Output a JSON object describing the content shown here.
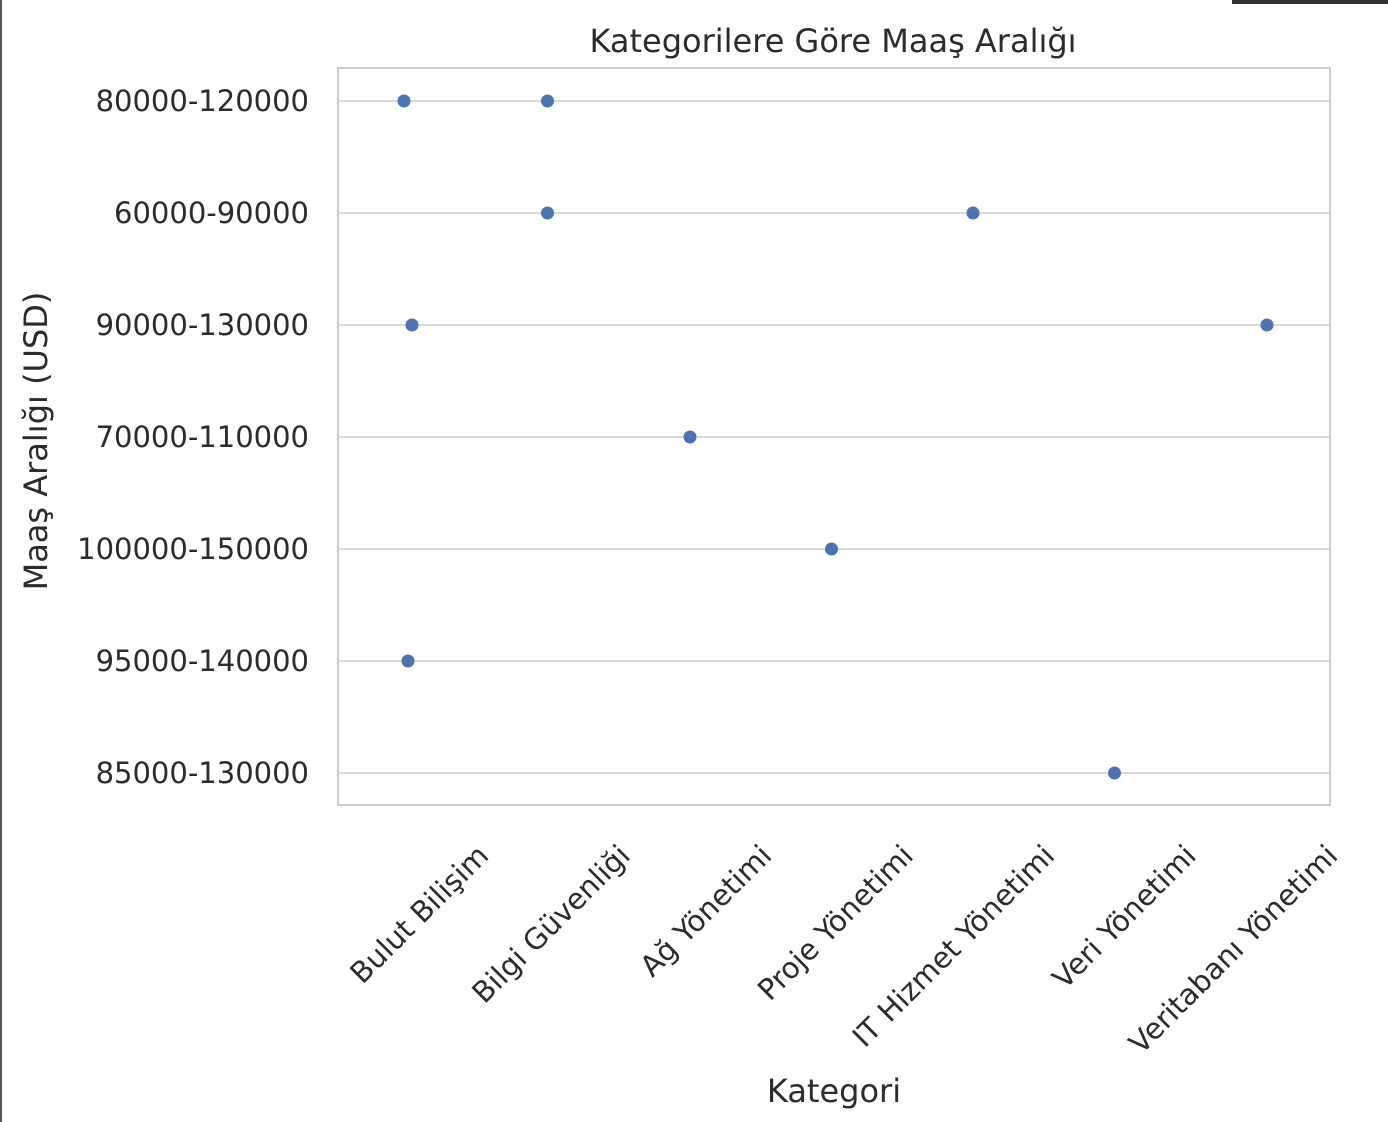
{
  "chart_data": {
    "type": "scatter",
    "title": "Kategorilere Göre Maaş Aralığı",
    "xlabel": "Kategori",
    "ylabel": "Maaş Aralığı (USD)",
    "categories": [
      "Bulut Bilişim",
      "Bilgi Güvenliği",
      "Ağ Yönetimi",
      "Proje Yönetimi",
      "IT Hizmet Yönetimi",
      "Veri Yönetimi",
      "Veritabanı Yönetimi"
    ],
    "y_categories": [
      "80000-120000",
      "60000-90000",
      "90000-130000",
      "70000-110000",
      "100000-150000",
      "95000-140000",
      "85000-130000"
    ],
    "points": [
      {
        "x": "Bulut Bilişim",
        "y": "80000-120000"
      },
      {
        "x": "Bilgi Güvenliği",
        "y": "80000-120000"
      },
      {
        "x": "Bilgi Güvenliği",
        "y": "60000-90000"
      },
      {
        "x": "IT Hizmet Yönetimi",
        "y": "60000-90000"
      },
      {
        "x": "Bulut Bilişim",
        "y": "90000-130000"
      },
      {
        "x": "Veritabanı Yönetimi",
        "y": "90000-130000"
      },
      {
        "x": "Ağ Yönetimi",
        "y": "70000-110000"
      },
      {
        "x": "Proje Yönetimi",
        "y": "100000-150000"
      },
      {
        "x": "Bulut Bilişim",
        "y": "95000-140000"
      },
      {
        "x": "Veri Yönetimi",
        "y": "85000-130000"
      }
    ],
    "grid": true,
    "point_color": "#4c72b0"
  }
}
